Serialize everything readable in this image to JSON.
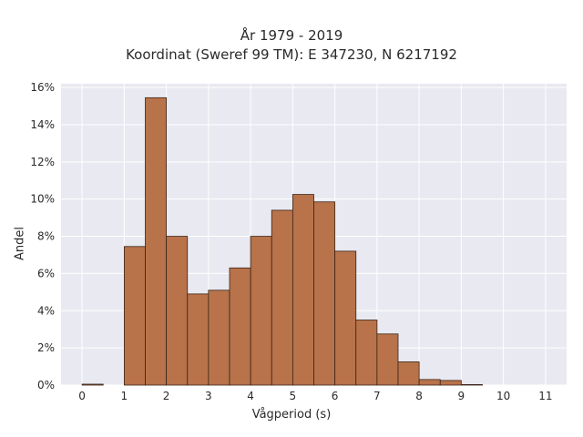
{
  "chart_data": {
    "type": "bar",
    "title_lines": [
      "År 1979 - 2019",
      "Koordinat (Sweref 99 TM): E 347230, N 6217192"
    ],
    "xlabel": "Vågperiod (s)",
    "ylabel": "Andel",
    "bin_width": 0.5,
    "bins": [
      {
        "x0": 0.0,
        "value": 0.05
      },
      {
        "x0": 0.5,
        "value": 0.0
      },
      {
        "x0": 1.0,
        "value": 7.45
      },
      {
        "x0": 1.5,
        "value": 15.45
      },
      {
        "x0": 2.0,
        "value": 8.0
      },
      {
        "x0": 2.5,
        "value": 4.9
      },
      {
        "x0": 3.0,
        "value": 5.1
      },
      {
        "x0": 3.5,
        "value": 6.3
      },
      {
        "x0": 4.0,
        "value": 8.0
      },
      {
        "x0": 4.5,
        "value": 9.4
      },
      {
        "x0": 5.0,
        "value": 10.25
      },
      {
        "x0": 5.5,
        "value": 9.85
      },
      {
        "x0": 6.0,
        "value": 7.2
      },
      {
        "x0": 6.5,
        "value": 3.5
      },
      {
        "x0": 7.0,
        "value": 2.75
      },
      {
        "x0": 7.5,
        "value": 1.25
      },
      {
        "x0": 8.0,
        "value": 0.3
      },
      {
        "x0": 8.5,
        "value": 0.25
      },
      {
        "x0": 9.0,
        "value": 0.03
      }
    ],
    "xlim": [
      -0.5,
      11.5
    ],
    "ylim": [
      0,
      16.2
    ],
    "x_ticks": [
      0,
      1,
      2,
      3,
      4,
      5,
      6,
      7,
      8,
      9,
      10,
      11
    ],
    "y_ticks": [
      "0%",
      "2%",
      "4%",
      "6%",
      "8%",
      "10%",
      "12%",
      "14%",
      "16%"
    ],
    "y_tick_values": [
      0,
      2,
      4,
      6,
      8,
      10,
      12,
      14,
      16
    ],
    "grid": true,
    "colors": {
      "bar_fill": "#b8734a",
      "bar_stroke": "#3a2418",
      "plot_background": "#e9e9f1",
      "grid": "#ffffff"
    }
  }
}
